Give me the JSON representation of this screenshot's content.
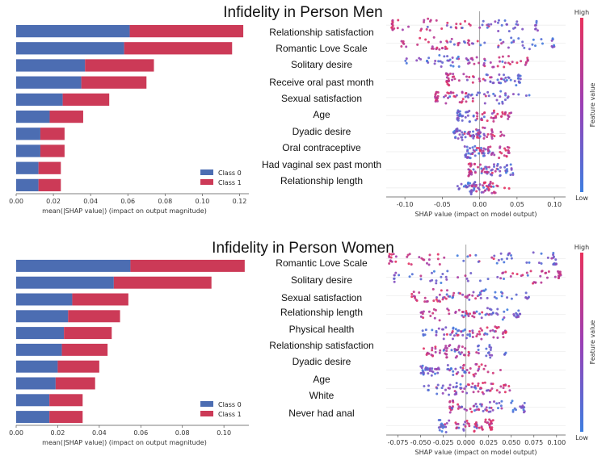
{
  "chart_data": [
    {
      "type": "bar",
      "title": "Infidelity in Person Men",
      "orientation": "horizontal",
      "stacked": true,
      "xlabel": "mean(|SHAP value|) (impact on output magnitude)",
      "xlim": [
        0,
        0.125
      ],
      "xticks": [
        "0.00",
        "0.02",
        "0.04",
        "0.06",
        "0.08",
        "0.10",
        "0.12"
      ],
      "xtick_values": [
        0,
        0.02,
        0.04,
        0.06,
        0.08,
        0.1,
        0.12
      ],
      "legend_position": "bottom-right",
      "colors": {
        "class0": "#4c6db2",
        "class1": "#cc3a57"
      },
      "categories": [
        "Relationship satisfaction",
        "Romantic Love Scale",
        "Solitary desire",
        "Receive oral past month",
        "Sexual satisfaction",
        "Age",
        "Dyadic desire",
        "Oral contraceptive",
        "Had vaginal sex past month",
        "Relationship length"
      ],
      "series": [
        {
          "name": "Class 0",
          "values": [
            0.061,
            0.058,
            0.037,
            0.035,
            0.025,
            0.018,
            0.013,
            0.013,
            0.012,
            0.012
          ]
        },
        {
          "name": "Class 1",
          "values": [
            0.061,
            0.058,
            0.037,
            0.035,
            0.025,
            0.018,
            0.013,
            0.013,
            0.012,
            0.012
          ]
        }
      ]
    },
    {
      "type": "scatter",
      "subtype": "beeswarm",
      "xlabel": "SHAP value (impact on model output)",
      "xlim": [
        -0.125,
        0.115
      ],
      "xticks": [
        "-0.10",
        "-0.05",
        "0.00",
        "0.05",
        "0.10"
      ],
      "xtick_values": [
        -0.1,
        -0.05,
        0.0,
        0.05,
        0.1
      ],
      "colorbar": {
        "label": "Feature value",
        "high": "High",
        "low": "Low",
        "colors": [
          "#3d7ee0",
          "#9b3fb5",
          "#e8315c"
        ]
      },
      "features": [
        {
          "name": "Relationship satisfaction",
          "high_value_center": -0.075,
          "low_value_center": 0.047,
          "min": -0.118,
          "max": 0.078
        },
        {
          "name": "Romantic Love Scale",
          "high_value_center": -0.05,
          "low_value_center": 0.06,
          "min": -0.105,
          "max": 0.1
        },
        {
          "name": "Solitary desire",
          "high_value_center": 0.025,
          "low_value_center": -0.05,
          "min": -0.1,
          "max": 0.065
        },
        {
          "name": "Receive oral past month",
          "high_value_center": -0.035,
          "low_value_center": 0.035,
          "min": -0.045,
          "max": 0.055
        },
        {
          "name": "Sexual satisfaction",
          "high_value_center": -0.04,
          "low_value_center": 0.02,
          "min": -0.06,
          "max": 0.07
        },
        {
          "name": "Age",
          "high_value_center": 0.02,
          "low_value_center": -0.02,
          "min": -0.03,
          "max": 0.06
        },
        {
          "name": "Dyadic desire",
          "high_value_center": 0.005,
          "low_value_center": -0.02,
          "min": -0.035,
          "max": 0.055
        },
        {
          "name": "Oral contraceptive",
          "high_value_center": 0.02,
          "low_value_center": -0.015,
          "min": -0.02,
          "max": 0.04
        },
        {
          "name": "Had vaginal sex past month",
          "high_value_center": -0.01,
          "low_value_center": 0.03,
          "min": -0.015,
          "max": 0.045
        },
        {
          "name": "Relationship length",
          "high_value_center": 0.01,
          "low_value_center": -0.01,
          "min": -0.03,
          "max": 0.055
        }
      ]
    },
    {
      "type": "bar",
      "title": "Infidelity in Person Women",
      "orientation": "horizontal",
      "stacked": true,
      "xlabel": "mean(|SHAP value|) (impact on output magnitude)",
      "xlim": [
        0,
        0.112
      ],
      "xticks": [
        "0.00",
        "0.02",
        "0.04",
        "0.06",
        "0.08",
        "0.10"
      ],
      "xtick_values": [
        0,
        0.02,
        0.04,
        0.06,
        0.08,
        0.1
      ],
      "legend_position": "bottom-right",
      "colors": {
        "class0": "#4c6db2",
        "class1": "#cc3a57"
      },
      "categories": [
        "Romantic Love Scale",
        "Solitary desire",
        "Sexual satisfaction",
        "Relationship length",
        "Physical health",
        "Relationship satisfaction",
        "Dyadic desire",
        "Age",
        "White",
        "Never had anal"
      ],
      "series": [
        {
          "name": "Class 0",
          "values": [
            0.055,
            0.047,
            0.027,
            0.025,
            0.023,
            0.022,
            0.02,
            0.019,
            0.016,
            0.016
          ]
        },
        {
          "name": "Class 1",
          "values": [
            0.055,
            0.047,
            0.027,
            0.025,
            0.023,
            0.022,
            0.02,
            0.019,
            0.016,
            0.016
          ]
        }
      ]
    },
    {
      "type": "scatter",
      "subtype": "beeswarm",
      "xlabel": "SHAP value (impact on model output)",
      "xlim": [
        -0.088,
        0.11
      ],
      "xticks": [
        "-0.075",
        "-0.050",
        "-0.025",
        "0.000",
        "0.025",
        "0.050",
        "0.075",
        "0.100"
      ],
      "xtick_values": [
        -0.075,
        -0.05,
        -0.025,
        0.0,
        0.025,
        0.05,
        0.075,
        0.1
      ],
      "colorbar": {
        "label": "Feature value",
        "high": "High",
        "low": "Low",
        "colors": [
          "#3d7ee0",
          "#9b3fb5",
          "#e8315c"
        ]
      },
      "features": [
        {
          "name": "Romantic Love Scale",
          "high_value_center": -0.06,
          "low_value_center": 0.07,
          "min": -0.085,
          "max": 0.1
        },
        {
          "name": "Solitary desire",
          "high_value_center": 0.075,
          "low_value_center": -0.04,
          "min": -0.08,
          "max": 0.105
        },
        {
          "name": "Sexual satisfaction",
          "high_value_center": -0.035,
          "low_value_center": 0.025,
          "min": -0.06,
          "max": 0.07
        },
        {
          "name": "Relationship length",
          "high_value_center": -0.02,
          "low_value_center": 0.03,
          "min": -0.05,
          "max": 0.06
        },
        {
          "name": "Physical health",
          "high_value_center": 0.025,
          "low_value_center": -0.015,
          "min": -0.05,
          "max": 0.045
        },
        {
          "name": "Relationship satisfaction",
          "high_value_center": -0.02,
          "low_value_center": 0.02,
          "min": -0.05,
          "max": 0.045
        },
        {
          "name": "Dyadic desire",
          "high_value_center": 0.005,
          "low_value_center": -0.03,
          "min": -0.05,
          "max": 0.04
        },
        {
          "name": "Age",
          "high_value_center": 0.02,
          "low_value_center": -0.02,
          "min": -0.05,
          "max": 0.05
        },
        {
          "name": "White",
          "high_value_center": -0.012,
          "low_value_center": 0.045,
          "min": -0.018,
          "max": 0.065
        },
        {
          "name": "Never had anal",
          "high_value_center": 0.018,
          "low_value_center": -0.02,
          "min": -0.03,
          "max": 0.03
        }
      ]
    }
  ]
}
